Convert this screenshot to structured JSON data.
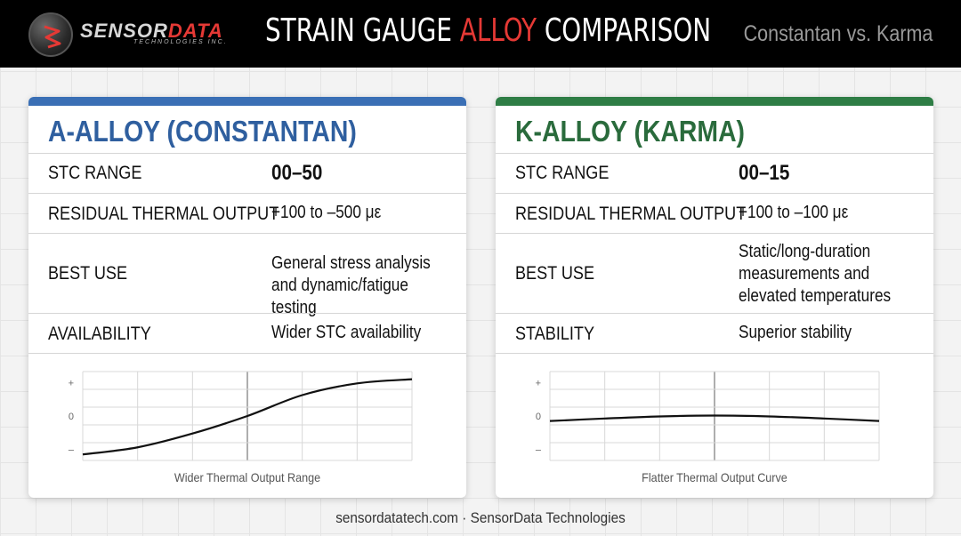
{
  "header": {
    "logo_main": "SENSOR",
    "logo_accent": "DATA",
    "logo_sub": "TECHNOLOGIES INC.",
    "title_pre": "STRAIN GAUGE ",
    "title_accent": "ALLOY",
    "title_post": " COMPARISON",
    "subtitle": "Constantan vs. Karma"
  },
  "colors": {
    "header_bg": "#000000",
    "accent_red": "#e53935",
    "constantan_blue": "#3a6fb5",
    "karma_green": "#2e7d45"
  },
  "cards": [
    {
      "title": "A-ALLOY (CONSTANTAN)",
      "rows": [
        {
          "label": "STC RANGE",
          "value": "00–50"
        },
        {
          "label": "RESIDUAL THERMAL OUTPUT",
          "value": "+100 to –500 με"
        },
        {
          "label": "BEST USE",
          "value": "General stress analysis and dynamic/fatigue testing"
        },
        {
          "label": "AVAILABILITY",
          "value": "Wider STC availability"
        }
      ],
      "chart": {
        "y_ticks": [
          "+",
          "0",
          "–"
        ],
        "caption": "Wider Thermal Output Range"
      }
    },
    {
      "title": "K-ALLOY (KARMA)",
      "rows": [
        {
          "label": "STC RANGE",
          "value": "00–15"
        },
        {
          "label": "RESIDUAL THERMAL OUTPUT",
          "value": "+100 to –100 με"
        },
        {
          "label": "BEST USE",
          "value": "Static/long-duration measurements and elevated temperatures"
        },
        {
          "label": "STABILITY",
          "value": "Superior stability"
        }
      ],
      "chart": {
        "y_ticks": [
          "+",
          "0",
          "–"
        ],
        "caption": "Flatter Thermal Output Curve"
      }
    }
  ],
  "chart_data": [
    {
      "type": "line",
      "x": [
        0,
        1,
        2,
        3,
        4,
        5,
        6
      ],
      "series": [
        {
          "values": [
            -0.92,
            -0.75,
            -0.42,
            0.0,
            0.5,
            0.78,
            0.88
          ]
        }
      ],
      "ylim": [
        -1,
        1
      ],
      "yticks": [
        "+",
        "0",
        "–"
      ],
      "grid": true,
      "caption": "Wider Thermal Output Range"
    },
    {
      "type": "line",
      "x": [
        0,
        1,
        2,
        3,
        4,
        5,
        6
      ],
      "series": [
        {
          "values": [
            -0.12,
            -0.06,
            -0.01,
            0.01,
            -0.01,
            -0.06,
            -0.12
          ]
        }
      ],
      "ylim": [
        -1,
        1
      ],
      "yticks": [
        "+",
        "0",
        "–"
      ],
      "grid": true,
      "caption": "Flatter Thermal Output Curve"
    }
  ],
  "footer": {
    "site": "sensordatatech.com",
    "separator": "·",
    "company": "SensorData Technologies"
  }
}
